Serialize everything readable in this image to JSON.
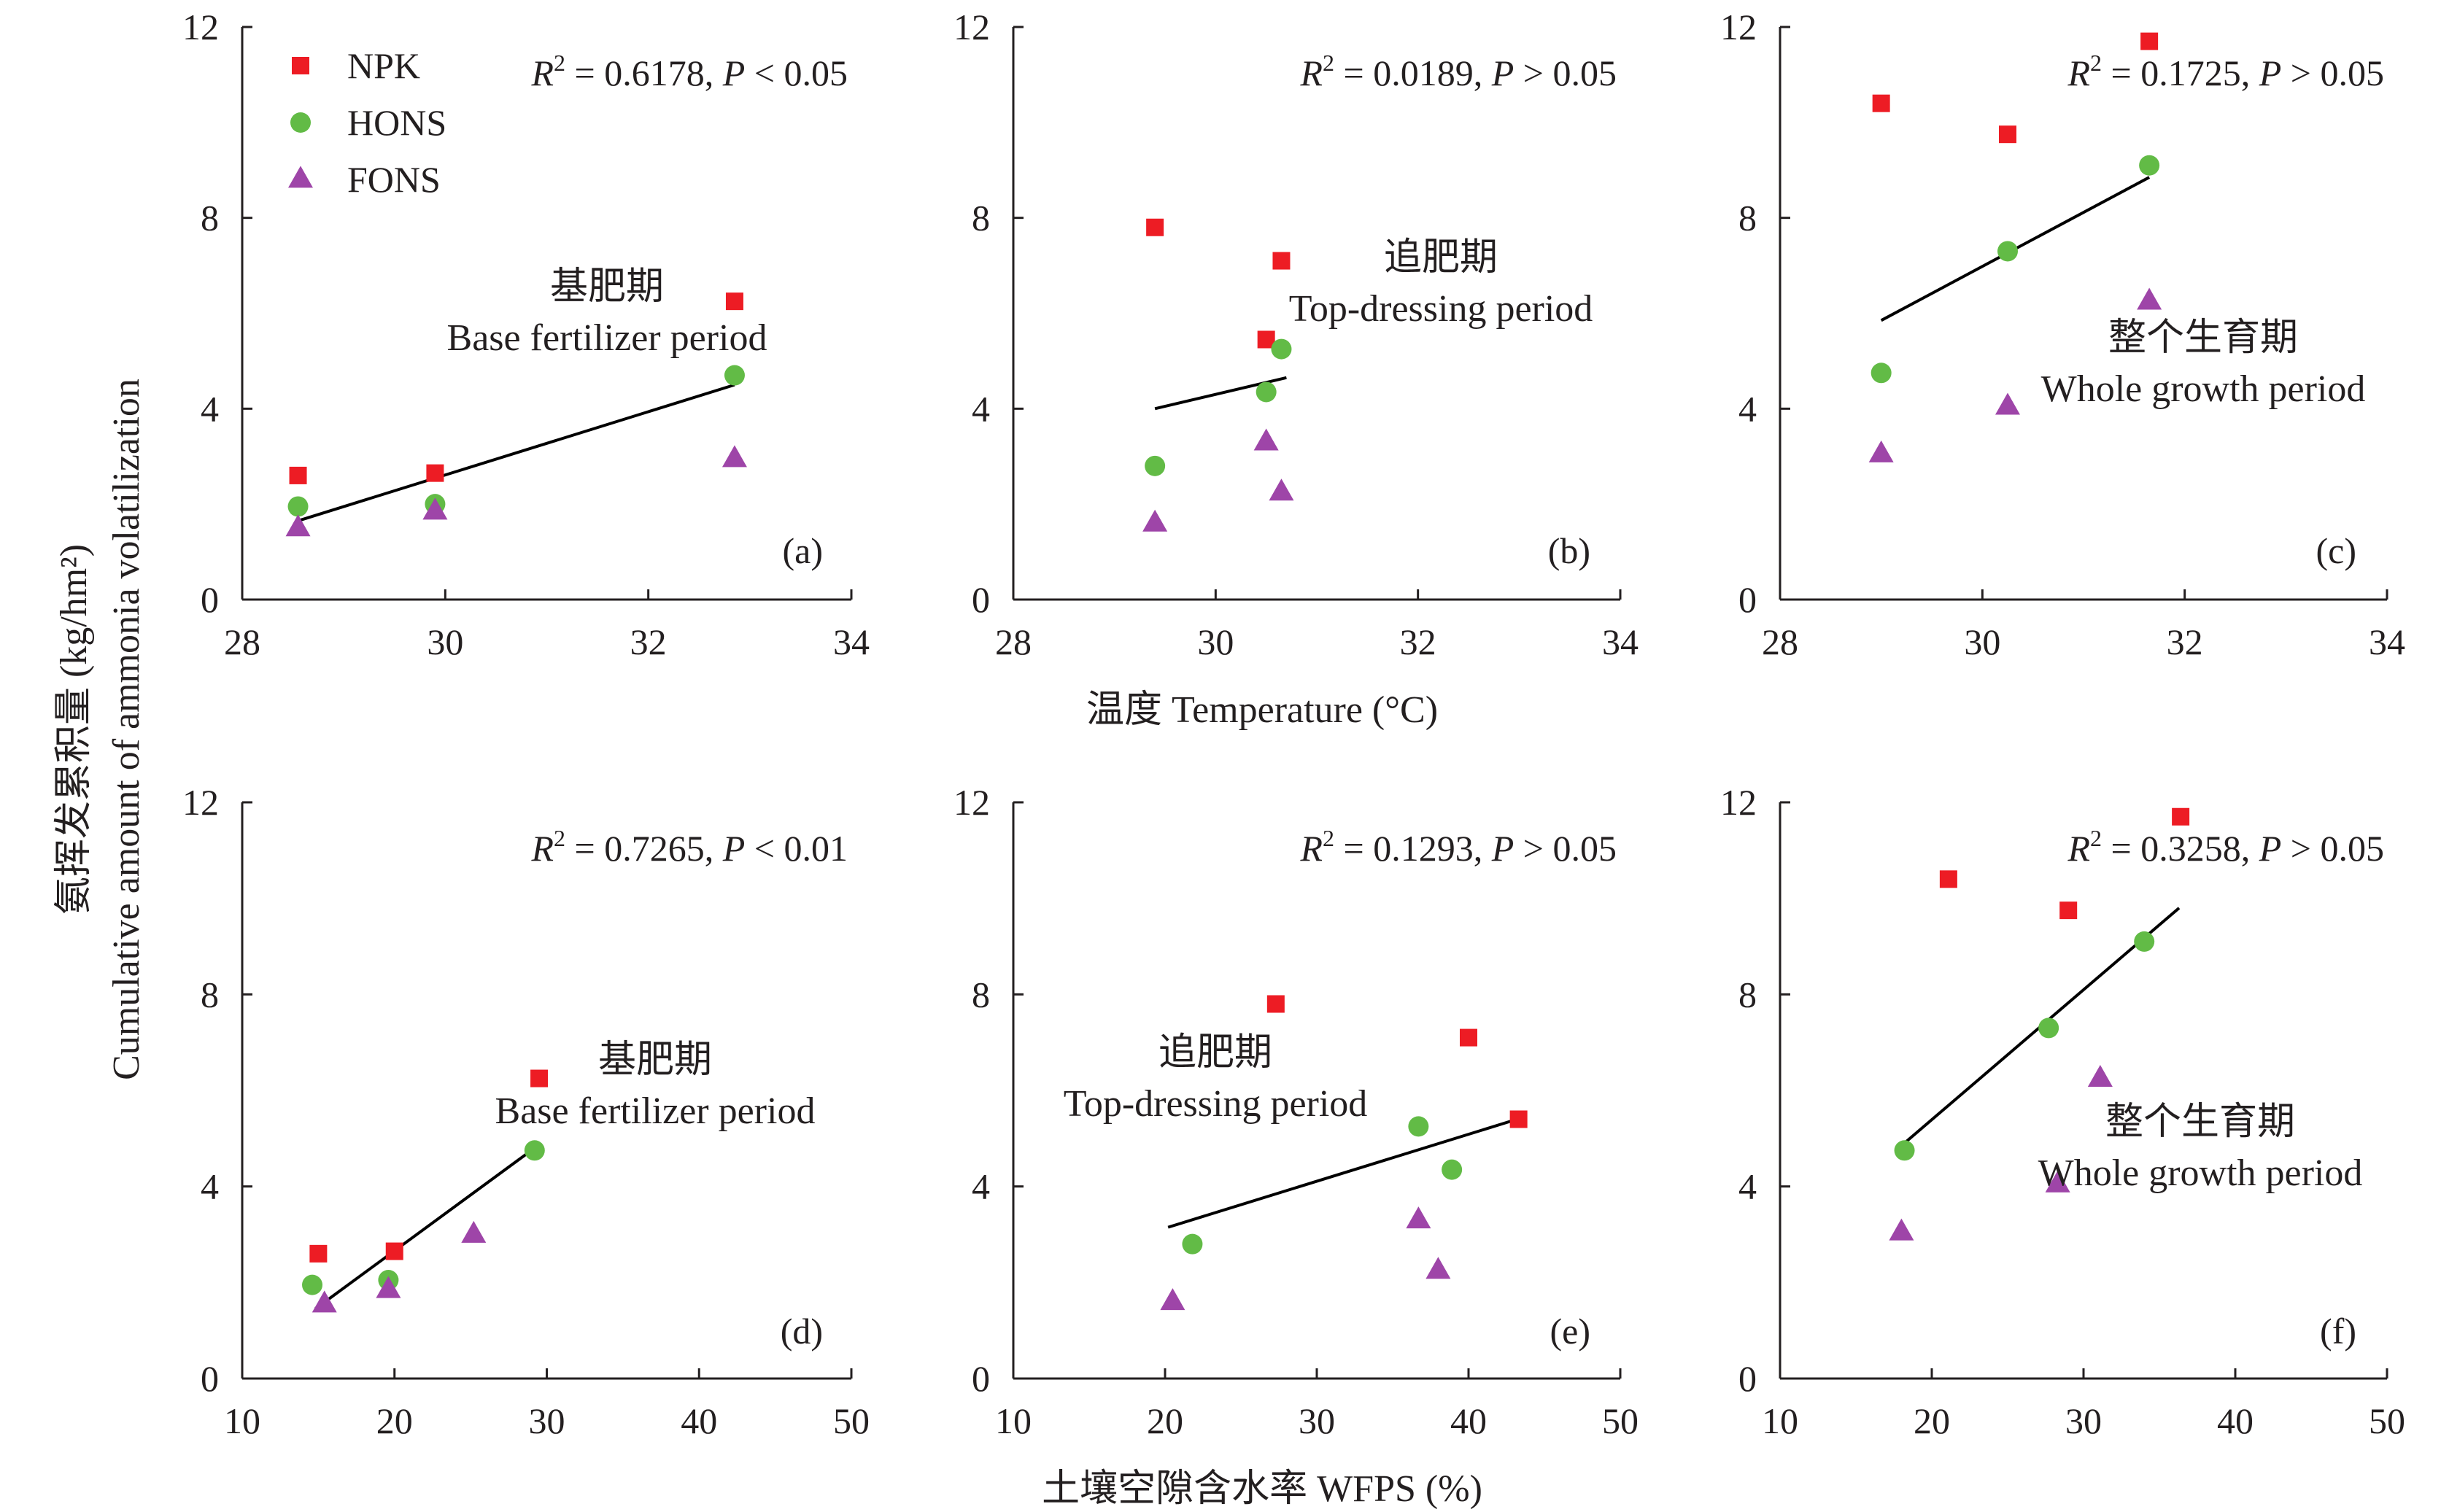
{
  "colors": {
    "NPK": "#ed1c24",
    "HONS": "#62bb46",
    "FONS": "#9e45a8",
    "axis": "#231f20",
    "fit": "#000000"
  },
  "legend": [
    {
      "label": "NPK",
      "marker": "square"
    },
    {
      "label": "HONS",
      "marker": "circle"
    },
    {
      "label": "FONS",
      "marker": "triangle"
    }
  ],
  "ylabel_cn": "氨挥发累积量 (kg/hm²)",
  "ylabel_en": "Cumulative amount of ammonia volatilization",
  "xlabel_top": "温度 Temperature (°C)",
  "xlabel_bottom": "土壤空隙含水率 WFPS (%)",
  "chart_data": [
    {
      "type": "scatter",
      "tag": "(a)",
      "stat_r2": "0.6178",
      "stat_p": "P < 0.05",
      "period_cn": "基肥期",
      "period_en": "Base fertilizer period",
      "xlim": [
        28,
        34
      ],
      "ylim": [
        0,
        12
      ],
      "xticks": [
        28,
        30,
        32,
        34
      ],
      "yticks": [
        0,
        4,
        8,
        12
      ],
      "series": [
        {
          "name": "NPK",
          "points": [
            [
              28.55,
              2.6
            ],
            [
              29.9,
              2.65
            ],
            [
              32.85,
              6.25
            ]
          ]
        },
        {
          "name": "HONS",
          "points": [
            [
              28.55,
              1.95
            ],
            [
              29.9,
              2.0
            ],
            [
              32.85,
              4.7
            ]
          ]
        },
        {
          "name": "FONS",
          "points": [
            [
              28.55,
              1.5
            ],
            [
              29.9,
              1.85
            ],
            [
              32.85,
              2.95
            ]
          ]
        }
      ],
      "fit": [
        [
          28.55,
          1.65
        ],
        [
          32.85,
          4.5
        ]
      ]
    },
    {
      "type": "scatter",
      "tag": "(b)",
      "stat_r2": "0.0189",
      "stat_p": "P > 0.05",
      "period_cn": "追肥期",
      "period_en": "Top-dressing period",
      "xlim": [
        28,
        34
      ],
      "ylim": [
        0,
        12
      ],
      "xticks": [
        28,
        30,
        32,
        34
      ],
      "yticks": [
        0,
        4,
        8,
        12
      ],
      "series": [
        {
          "name": "NPK",
          "points": [
            [
              29.4,
              7.8
            ],
            [
              30.5,
              5.45
            ],
            [
              30.65,
              7.1
            ]
          ]
        },
        {
          "name": "HONS",
          "points": [
            [
              29.4,
              2.8
            ],
            [
              30.5,
              4.35
            ],
            [
              30.65,
              5.25
            ]
          ]
        },
        {
          "name": "FONS",
          "points": [
            [
              29.4,
              1.6
            ],
            [
              30.5,
              3.3
            ],
            [
              30.65,
              2.25
            ]
          ]
        }
      ],
      "fit": [
        [
          29.4,
          4.0
        ],
        [
          30.7,
          4.65
        ]
      ]
    },
    {
      "type": "scatter",
      "tag": "(c)",
      "stat_r2": "0.1725",
      "stat_p": "P > 0.05",
      "period_cn": "整个生育期",
      "period_en": "Whole growth period",
      "xlim": [
        28,
        34
      ],
      "ylim": [
        0,
        12
      ],
      "xticks": [
        28,
        30,
        32,
        34
      ],
      "yticks": [
        0,
        4,
        8,
        12
      ],
      "series": [
        {
          "name": "NPK",
          "points": [
            [
              29.0,
              10.4
            ],
            [
              30.25,
              9.75
            ],
            [
              31.65,
              11.7
            ]
          ]
        },
        {
          "name": "HONS",
          "points": [
            [
              29.0,
              4.75
            ],
            [
              30.25,
              7.3
            ],
            [
              31.65,
              9.1
            ]
          ]
        },
        {
          "name": "FONS",
          "points": [
            [
              29.0,
              3.05
            ],
            [
              30.25,
              4.05
            ],
            [
              31.65,
              6.25
            ]
          ]
        }
      ],
      "fit": [
        [
          29.0,
          5.85
        ],
        [
          31.65,
          8.85
        ]
      ]
    },
    {
      "type": "scatter",
      "tag": "(d)",
      "stat_r2": "0.7265",
      "stat_p": "P < 0.01",
      "period_cn": "基肥期",
      "period_en": "Base fertilizer period",
      "xlim": [
        10,
        50
      ],
      "ylim": [
        0,
        12
      ],
      "xticks": [
        10,
        20,
        30,
        40,
        50
      ],
      "yticks": [
        0,
        4,
        8,
        12
      ],
      "series": [
        {
          "name": "NPK",
          "points": [
            [
              15.0,
              2.6
            ],
            [
              20.0,
              2.65
            ],
            [
              29.5,
              6.25
            ]
          ]
        },
        {
          "name": "HONS",
          "points": [
            [
              14.6,
              1.95
            ],
            [
              19.6,
              2.05
            ],
            [
              29.2,
              4.75
            ]
          ]
        },
        {
          "name": "FONS",
          "points": [
            [
              15.4,
              1.55
            ],
            [
              19.6,
              1.85
            ],
            [
              25.2,
              3.0
            ]
          ]
        }
      ],
      "fit": [
        [
          14.8,
          1.45
        ],
        [
          29.2,
          4.8
        ]
      ]
    },
    {
      "type": "scatter",
      "tag": "(e)",
      "stat_r2": "0.1293",
      "stat_p": "P > 0.05",
      "period_cn": "追肥期",
      "period_en": "Top-dressing period",
      "xlim": [
        10,
        50
      ],
      "ylim": [
        0,
        12
      ],
      "xticks": [
        10,
        20,
        30,
        40,
        50
      ],
      "yticks": [
        0,
        4,
        8,
        12
      ],
      "series": [
        {
          "name": "NPK",
          "points": [
            [
              27.3,
              7.8
            ],
            [
              40.0,
              7.1
            ],
            [
              43.3,
              5.4
            ]
          ]
        },
        {
          "name": "HONS",
          "points": [
            [
              21.8,
              2.8
            ],
            [
              36.7,
              5.25
            ],
            [
              38.9,
              4.35
            ]
          ]
        },
        {
          "name": "FONS",
          "points": [
            [
              20.5,
              1.6
            ],
            [
              36.7,
              3.3
            ],
            [
              38.0,
              2.25
            ]
          ]
        }
      ],
      "fit": [
        [
          20.2,
          3.15
        ],
        [
          43.2,
          5.4
        ]
      ]
    },
    {
      "type": "scatter",
      "tag": "(f)",
      "stat_r2": "0.3258",
      "stat_p": "P > 0.05",
      "period_cn": "整个生育期",
      "period_en": "Whole growth period",
      "xlim": [
        10,
        50
      ],
      "ylim": [
        0,
        12
      ],
      "xticks": [
        10,
        20,
        30,
        40,
        50
      ],
      "yticks": [
        0,
        4,
        8,
        12
      ],
      "series": [
        {
          "name": "NPK",
          "points": [
            [
              21.1,
              10.4
            ],
            [
              29.0,
              9.75
            ],
            [
              36.4,
              11.7
            ]
          ]
        },
        {
          "name": "HONS",
          "points": [
            [
              18.2,
              4.75
            ],
            [
              27.7,
              7.3
            ],
            [
              34.0,
              9.1
            ]
          ]
        },
        {
          "name": "FONS",
          "points": [
            [
              18.0,
              3.05
            ],
            [
              28.3,
              4.05
            ],
            [
              31.1,
              6.25
            ]
          ]
        }
      ],
      "fit": [
        [
          18.0,
          4.85
        ],
        [
          36.3,
          9.8
        ]
      ]
    }
  ]
}
